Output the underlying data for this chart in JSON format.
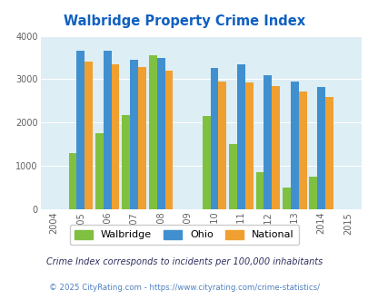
{
  "title": "Walbridge Property Crime Index",
  "title_color": "#1060c0",
  "years": [
    2004,
    2005,
    2006,
    2007,
    2008,
    2009,
    2010,
    2011,
    2012,
    2013,
    2014,
    2015
  ],
  "data_years": [
    2005,
    2006,
    2007,
    2008,
    2010,
    2011,
    2012,
    2013,
    2014
  ],
  "walbridge": [
    1300,
    1750,
    2175,
    3550,
    2150,
    1500,
    850,
    500,
    750
  ],
  "ohio": [
    3650,
    3650,
    3450,
    3500,
    3250,
    3350,
    3100,
    2950,
    2825
  ],
  "national": [
    3400,
    3350,
    3275,
    3200,
    2950,
    2925,
    2850,
    2725,
    2600
  ],
  "walbridge_color": "#80c040",
  "ohio_color": "#4090d0",
  "national_color": "#f0a030",
  "bg_color": "#ddeef5",
  "ylim": [
    0,
    4000
  ],
  "yticks": [
    0,
    1000,
    2000,
    3000,
    4000
  ],
  "xlim": [
    2003.5,
    2015.5
  ],
  "bar_width": 0.3,
  "footnote1": "Crime Index corresponds to incidents per 100,000 inhabitants",
  "footnote2": "© 2025 CityRating.com - https://www.cityrating.com/crime-statistics/",
  "footnote1_color": "#303060",
  "footnote2_color": "#5080c0",
  "legend_labels": [
    "Walbridge",
    "Ohio",
    "National"
  ]
}
